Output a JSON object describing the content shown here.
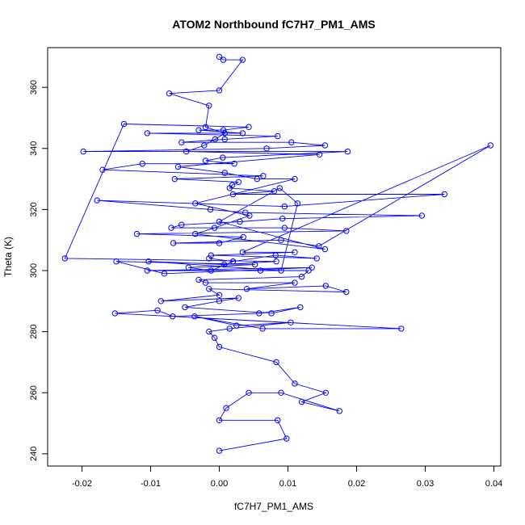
{
  "chart_data": {
    "type": "line",
    "title": "ATOM2 Northbound fC7H7_PM1_AMS",
    "xlabel": "fC7H7_PM1_AMS",
    "ylabel": "Theta (K)",
    "xlim": [
      -0.025,
      0.041
    ],
    "ylim": [
      236,
      373
    ],
    "x_ticks": [
      -0.02,
      -0.01,
      0.0,
      0.01,
      0.02,
      0.03,
      0.04
    ],
    "x_tick_labels": [
      "-0.02",
      "-0.01",
      "0.00",
      "0.01",
      "0.02",
      "0.03",
      "0.04"
    ],
    "y_ticks": [
      240,
      260,
      280,
      300,
      320,
      340,
      360
    ],
    "y_tick_labels": [
      "240",
      "260",
      "280",
      "300",
      "320",
      "340",
      "360"
    ],
    "grid": false,
    "markers": "open-circle",
    "line_color": "#0000ff",
    "series": [
      {
        "x": [
          0.0,
          0.0098,
          0.0085,
          0.0,
          0.001,
          0.0043,
          0.009,
          0.0175,
          0.012,
          0.0155,
          0.011,
          0.0083,
          0.0,
          -0.0007,
          -0.0015,
          0.0015,
          0.0104,
          0.0025,
          -0.0036,
          0.0063,
          0.0265,
          -0.0152,
          -0.009,
          -0.0068,
          0.0058,
          0.0118,
          0.0076,
          -0.005,
          0.0,
          0.0028,
          -0.0085,
          0.0,
          -0.0015,
          0.0185,
          0.0155,
          0.004,
          0.011,
          -0.002,
          -0.003,
          0.012,
          0.013,
          0.006,
          -0.0105,
          0.0135,
          -0.008,
          -0.015,
          0.0052,
          -0.0045,
          -0.0012,
          0.002,
          -0.0015,
          0.002,
          0.0082,
          0.0142,
          -0.0012,
          0.011,
          0.0034,
          0.0395,
          0.0145,
          0.009,
          -0.0067,
          0.0,
          0.0035,
          -0.012,
          0.0185,
          0.0095,
          -0.007,
          -0.0055,
          0.003,
          0.0092,
          0.0295,
          0.0038,
          -0.0013,
          -0.0178,
          0.0095,
          0.0328,
          0.002,
          0.008,
          0.0015,
          0.0019,
          0.0028,
          -0.0065,
          0.0064,
          -0.017,
          -0.0112,
          0.0022,
          -0.002,
          0.0005,
          0.0187,
          -0.0198,
          0.0069,
          0.0154,
          0.0105,
          -0.0055,
          0.0008,
          0.0085,
          -0.0105,
          0.0034,
          -0.003,
          0.0006,
          0.0043,
          -0.0139,
          -0.0225,
          0.0083,
          0.0007,
          -0.0103,
          0.009,
          0.0114,
          0.0088,
          0.0,
          0.0154,
          -0.0035,
          -0.0007,
          0.0044,
          -0.0035,
          0.011,
          0.0055,
          0.0008,
          -0.006,
          0.0146,
          -0.0048,
          -0.0022,
          -0.0006,
          0.0008,
          -0.002,
          -0.0015,
          -0.0073,
          0.0,
          0.0034,
          0.0006,
          0.0
        ],
        "y": [
          241,
          245,
          251,
          251,
          255,
          260,
          260,
          254,
          257,
          260,
          263,
          270,
          275,
          278,
          280,
          281,
          283,
          282,
          285,
          281,
          281,
          286,
          287,
          285,
          286,
          288,
          286,
          288,
          290,
          291,
          290,
          292,
          294,
          293,
          295,
          294,
          296,
          296,
          297,
          298,
          300,
          300,
          300,
          301,
          299,
          303,
          302,
          301,
          300,
          303,
          304,
          303,
          305,
          304,
          305,
          306,
          306,
          341,
          308,
          310,
          309,
          309,
          311,
          312,
          313,
          314,
          314,
          315,
          316,
          317,
          318,
          319,
          320,
          323,
          321,
          325,
          325,
          326,
          327,
          328,
          329,
          330,
          331,
          333,
          335,
          335,
          336,
          337,
          339,
          339,
          340,
          341,
          342,
          342,
          343,
          344,
          345,
          345,
          346,
          346,
          347,
          348,
          304,
          303,
          302,
          303,
          300,
          322,
          327,
          316,
          307,
          312,
          314,
          318,
          322,
          330,
          330,
          332,
          334,
          338,
          339,
          341,
          343,
          345,
          347,
          354,
          358,
          359,
          369,
          369,
          370
        ]
      }
    ]
  }
}
